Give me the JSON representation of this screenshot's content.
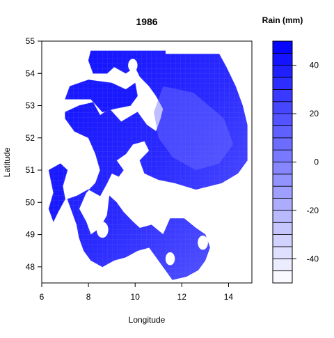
{
  "chart_data": {
    "type": "heatmap",
    "title": "1986",
    "xlabel": "Longitude",
    "ylabel": "Latitude",
    "xlim": [
      6,
      15
    ],
    "ylim": [
      47.5,
      55
    ],
    "x_ticks": [
      6,
      8,
      10,
      12,
      14
    ],
    "y_ticks": [
      48,
      49,
      50,
      51,
      52,
      53,
      54,
      55
    ],
    "grid": false,
    "legend": {
      "title": "Rain (mm)",
      "placement": "right",
      "range": [
        -50,
        50
      ],
      "ticks": [
        -40,
        -20,
        0,
        20,
        40
      ],
      "levels": [
        -50,
        -45,
        -40,
        -35,
        -30,
        -25,
        -20,
        -15,
        -10,
        -5,
        0,
        5,
        10,
        15,
        20,
        25,
        30,
        35,
        40,
        45,
        50
      ],
      "low_color": "#ffffff",
      "high_color": "#0000ff"
    },
    "regions": [
      {
        "description_value_mm": 45,
        "polygon": [
          [
            8.1,
            54.7
          ],
          [
            11.3,
            54.7
          ],
          [
            11.3,
            54.6
          ],
          [
            13.6,
            54.6
          ],
          [
            13.9,
            54.2
          ],
          [
            14.3,
            53.6
          ],
          [
            14.6,
            53.0
          ],
          [
            14.8,
            52.4
          ],
          [
            14.8,
            51.3
          ],
          [
            14.4,
            50.9
          ],
          [
            13.7,
            50.6
          ],
          [
            12.6,
            50.4
          ],
          [
            11.7,
            50.6
          ],
          [
            11.0,
            50.7
          ],
          [
            10.4,
            50.9
          ],
          [
            10.2,
            51.3
          ],
          [
            10.6,
            51.6
          ],
          [
            10.4,
            51.9
          ],
          [
            9.9,
            51.8
          ],
          [
            9.6,
            51.5
          ],
          [
            9.2,
            51.3
          ],
          [
            9.5,
            51.0
          ],
          [
            9.3,
            50.8
          ],
          [
            9.0,
            50.9
          ],
          [
            8.8,
            50.6
          ],
          [
            8.5,
            50.2
          ],
          [
            8.0,
            50.4
          ],
          [
            7.5,
            50.2
          ],
          [
            7.1,
            50.1
          ],
          [
            7.3,
            49.7
          ],
          [
            7.5,
            49.3
          ],
          [
            7.6,
            48.9
          ],
          [
            7.8,
            48.5
          ],
          [
            8.1,
            48.2
          ],
          [
            8.6,
            48.0
          ],
          [
            9.1,
            48.2
          ],
          [
            9.6,
            48.3
          ],
          [
            10.1,
            48.5
          ],
          [
            10.6,
            48.6
          ],
          [
            11.0,
            48.2
          ],
          [
            11.3,
            47.9
          ],
          [
            11.6,
            47.6
          ],
          [
            12.2,
            47.7
          ],
          [
            12.7,
            47.9
          ],
          [
            13.0,
            48.2
          ],
          [
            13.2,
            48.6
          ],
          [
            13.0,
            49.0
          ],
          [
            12.6,
            49.2
          ],
          [
            12.1,
            49.5
          ],
          [
            11.5,
            49.5
          ],
          [
            11.2,
            49.0
          ],
          [
            10.7,
            49.3
          ],
          [
            10.2,
            49.2
          ],
          [
            9.9,
            49.4
          ],
          [
            9.5,
            49.7
          ],
          [
            9.2,
            50.0
          ],
          [
            8.9,
            50.2
          ],
          [
            8.8,
            49.6
          ],
          [
            8.5,
            49.2
          ],
          [
            8.1,
            49.0
          ],
          [
            7.9,
            49.4
          ],
          [
            7.6,
            49.8
          ],
          [
            7.9,
            50.3
          ],
          [
            8.3,
            50.6
          ],
          [
            8.5,
            51.0
          ],
          [
            8.3,
            51.5
          ],
          [
            8.0,
            52.0
          ],
          [
            7.4,
            52.2
          ],
          [
            7.0,
            52.6
          ],
          [
            7.0,
            52.8
          ],
          [
            7.6,
            53.0
          ],
          [
            8.2,
            53.1
          ],
          [
            8.5,
            52.7
          ],
          [
            8.9,
            52.9
          ],
          [
            9.4,
            52.5
          ],
          [
            10.1,
            52.8
          ],
          [
            10.5,
            52.4
          ],
          [
            10.9,
            52.2
          ],
          [
            11.1,
            52.6
          ],
          [
            11.2,
            52.9
          ],
          [
            10.9,
            53.3
          ],
          [
            10.6,
            53.6
          ],
          [
            10.2,
            53.9
          ],
          [
            10.0,
            54.2
          ],
          [
            9.6,
            54.0
          ],
          [
            9.1,
            54.2
          ],
          [
            8.8,
            54.0
          ],
          [
            8.2,
            54.0
          ],
          [
            8.0,
            54.4
          ]
        ]
      },
      {
        "description_value_mm": 40,
        "polygon": [
          [
            7.0,
            53.2
          ],
          [
            7.2,
            53.6
          ],
          [
            8.0,
            53.8
          ],
          [
            9.0,
            53.7
          ],
          [
            9.6,
            53.5
          ],
          [
            10.0,
            53.7
          ],
          [
            10.1,
            53.3
          ],
          [
            9.8,
            53.0
          ],
          [
            9.1,
            52.9
          ],
          [
            8.6,
            52.8
          ],
          [
            8.1,
            53.2
          ],
          [
            7.4,
            53.2
          ]
        ]
      },
      {
        "description_value_mm": 40,
        "polygon": [
          [
            6.3,
            51.0
          ],
          [
            6.8,
            51.2
          ],
          [
            7.1,
            51.0
          ],
          [
            6.9,
            50.5
          ],
          [
            7.0,
            50.1
          ],
          [
            6.7,
            49.7
          ],
          [
            6.5,
            49.4
          ],
          [
            6.3,
            49.8
          ],
          [
            6.5,
            50.3
          ]
        ]
      }
    ],
    "overlay_circles": [
      {
        "x": 9.9,
        "y": 54.25,
        "r": 0.2
      },
      {
        "x": 8.6,
        "y": 49.15,
        "r": 0.25
      },
      {
        "x": 11.5,
        "y": 48.25,
        "r": 0.2
      },
      {
        "x": 12.9,
        "y": 48.75,
        "r": 0.22
      }
    ]
  }
}
